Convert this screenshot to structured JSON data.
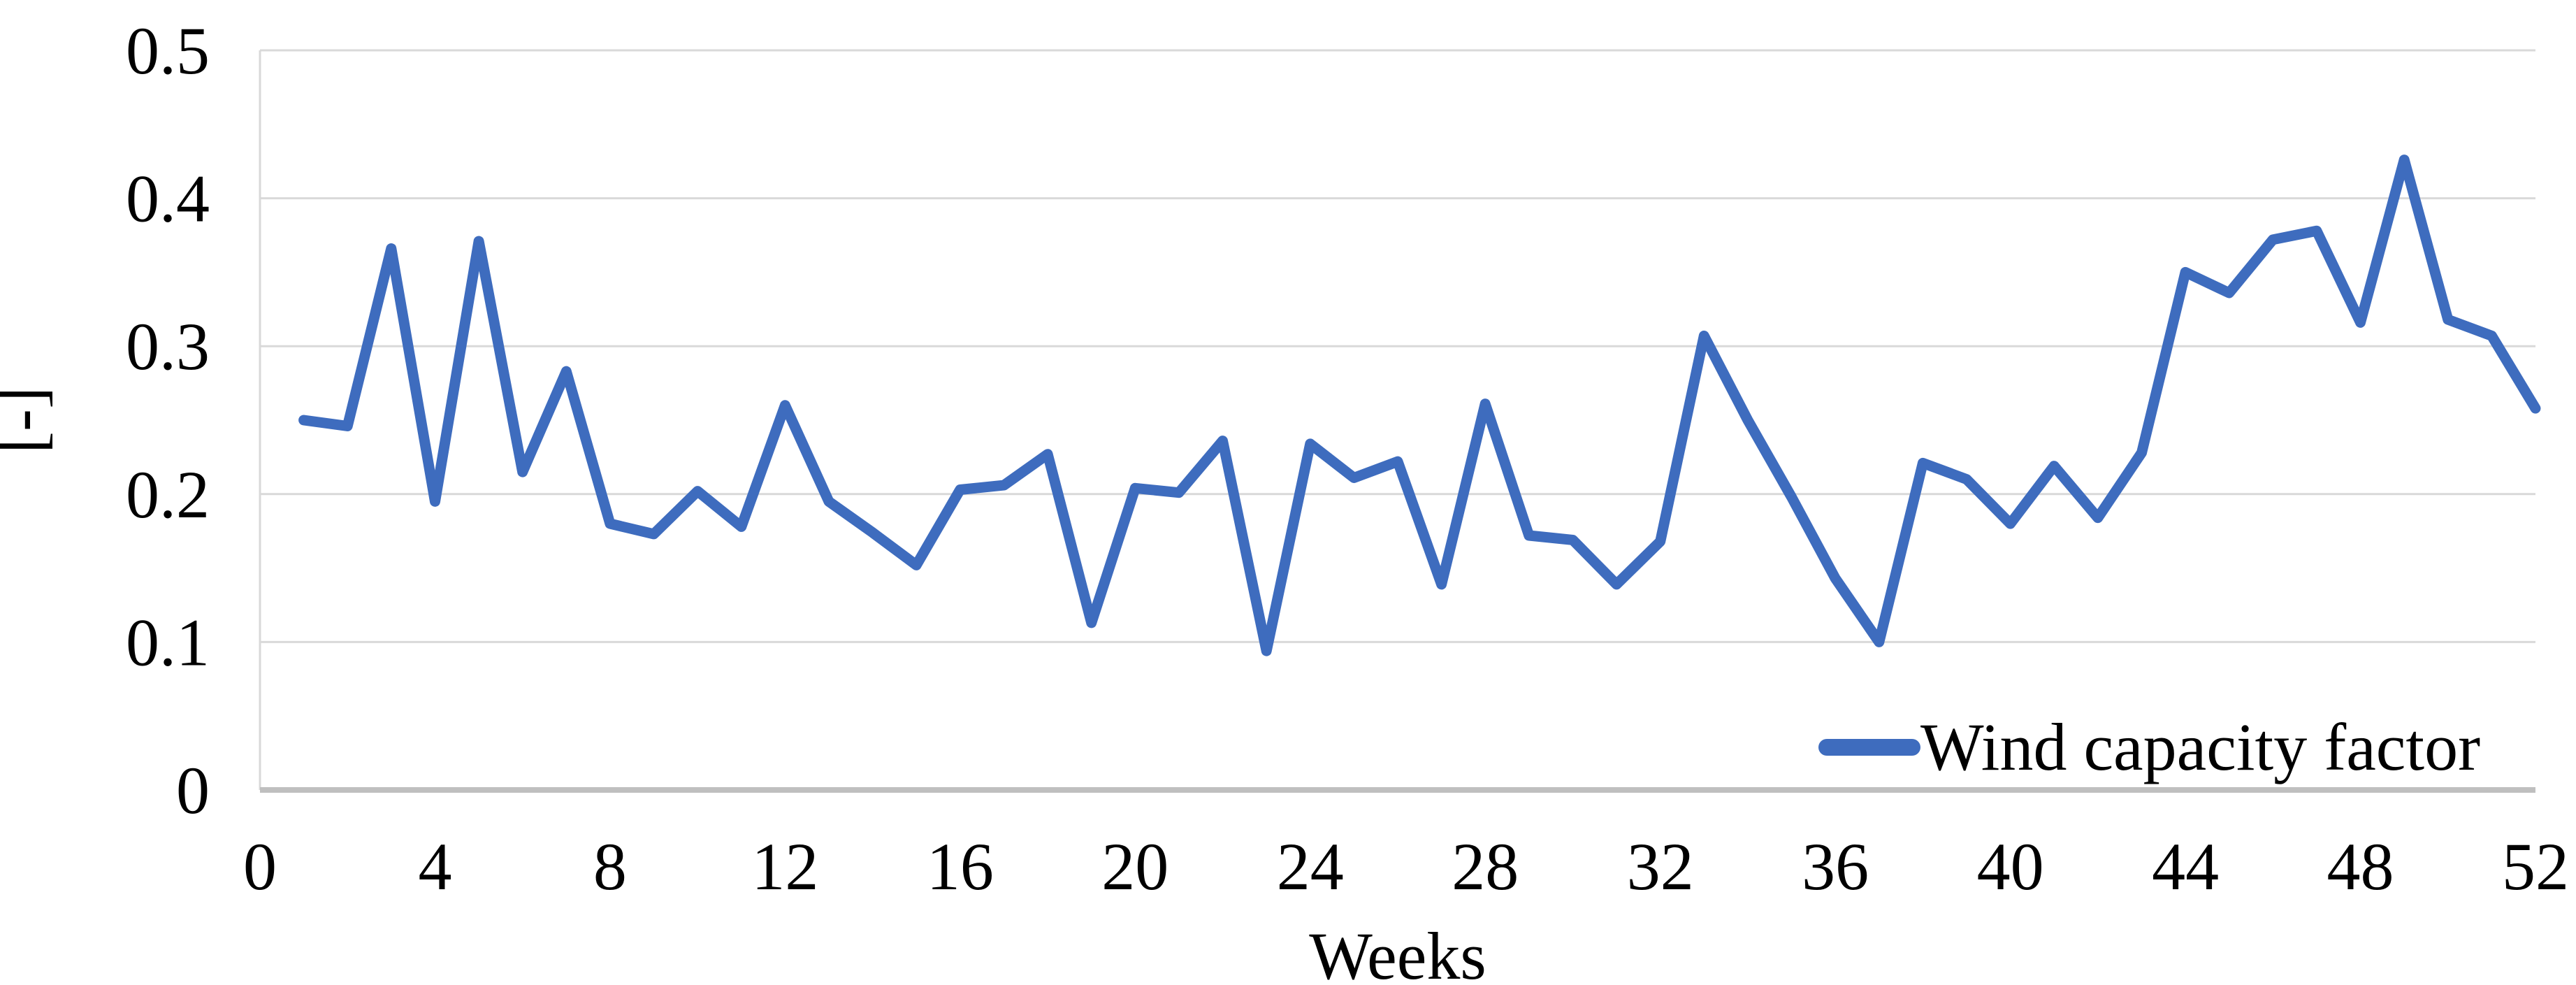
{
  "chart_data": {
    "type": "line",
    "title": "",
    "xlabel": "Weeks",
    "ylabel": "[-]",
    "xlim": [
      0,
      52
    ],
    "ylim": [
      0,
      0.5
    ],
    "x_tick_labels": [
      "0",
      "4",
      "8",
      "12",
      "16",
      "20",
      "24",
      "28",
      "32",
      "36",
      "40",
      "44",
      "48",
      "52"
    ],
    "y_tick_labels": [
      "0",
      "0.1",
      "0.2",
      "0.3",
      "0.4",
      "0.5"
    ],
    "grid": "horizontal",
    "legend_position": "bottom-right-inside",
    "series": [
      {
        "name": "Wind capacity factor",
        "color": "#3E6CBE",
        "x": [
          1,
          2,
          3,
          4,
          5,
          6,
          7,
          8,
          9,
          10,
          11,
          12,
          13,
          14,
          15,
          16,
          17,
          18,
          19,
          20,
          21,
          22,
          23,
          24,
          25,
          26,
          27,
          28,
          29,
          30,
          31,
          32,
          33,
          34,
          35,
          36,
          37,
          38,
          39,
          40,
          41,
          42,
          43,
          44,
          45,
          46,
          47,
          48,
          49,
          50,
          51,
          52
        ],
        "values": [
          0.25,
          0.246,
          0.366,
          0.195,
          0.371,
          0.215,
          0.283,
          0.18,
          0.173,
          0.202,
          0.178,
          0.26,
          0.195,
          0.174,
          0.152,
          0.203,
          0.206,
          0.227,
          0.113,
          0.204,
          0.201,
          0.236,
          0.094,
          0.234,
          0.211,
          0.222,
          0.139,
          0.261,
          0.172,
          0.169,
          0.139,
          0.168,
          0.307,
          0.25,
          0.198,
          0.143,
          0.1,
          0.221,
          0.21,
          0.18,
          0.219,
          0.184,
          0.228,
          0.35,
          0.336,
          0.372,
          0.378,
          0.316,
          0.426,
          0.318,
          0.307,
          0.258
        ]
      }
    ]
  },
  "colors": {
    "line": "#3E6CBE",
    "gridline": "#D9D9D9",
    "axis": "#BFBFBF",
    "text": "#000000",
    "background": "#FFFFFF"
  }
}
